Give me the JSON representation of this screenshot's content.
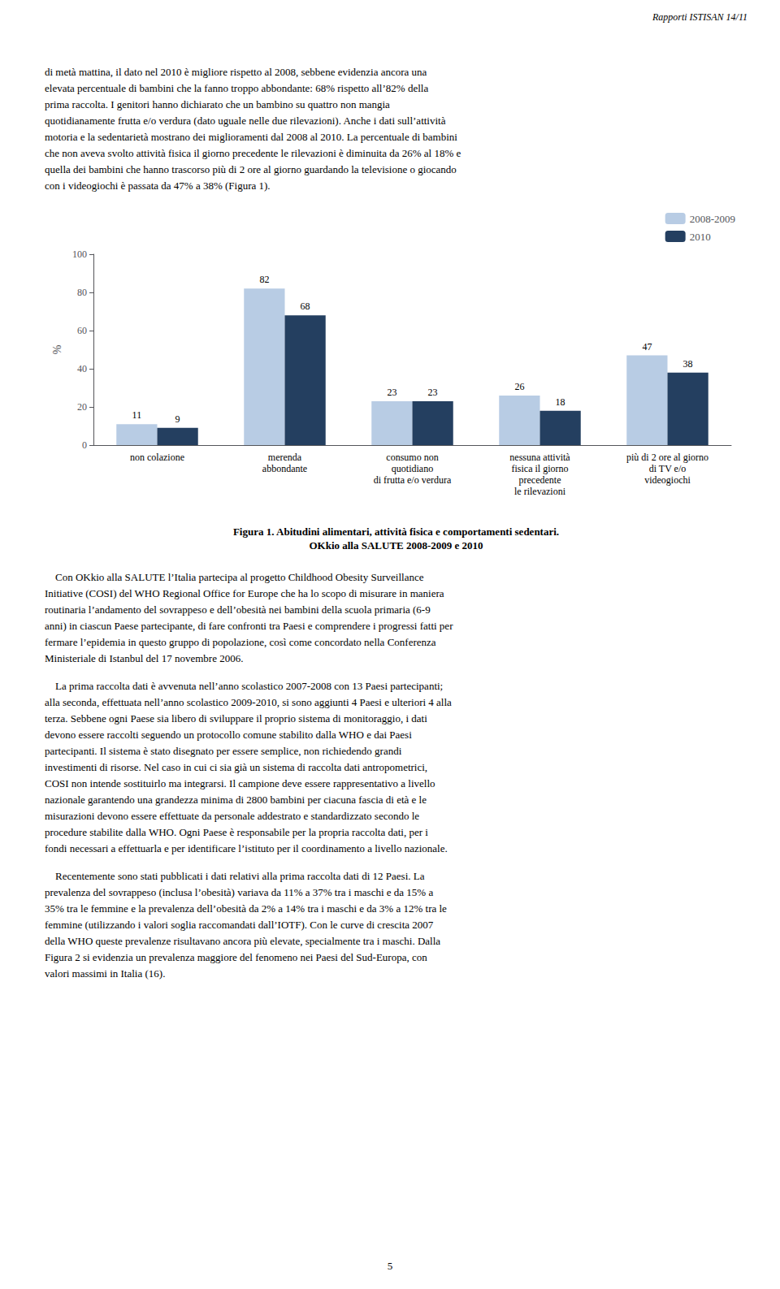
{
  "chart_data": {
    "type": "bar",
    "title": "Figura 1. Abitudini alimentari, attività fisica e comportamenti sedentari.",
    "subtitle": "OKkio alla SALUTE 2008-2009 e 2010",
    "categories": [
      "non colazione",
      "merenda\nabbondante",
      "consumo non\nquotidiano\ndi frutta e/o verdura",
      "nessuna attività\nfisica il giorno\nprecedente\nle rilevazioni",
      "più di 2 ore al giorno\ndi TV e/o\nvideogiochi"
    ],
    "series": [
      {
        "name": "2008-2009",
        "color": "#b8cce4",
        "values": [
          11,
          82,
          23,
          26,
          47
        ]
      },
      {
        "name": "2010",
        "color": "#243f60",
        "values": [
          9,
          68,
          23,
          18,
          38
        ]
      }
    ],
    "ylabel": "%",
    "ylim": [
      0,
      100
    ],
    "yticks": [
      0,
      20,
      40,
      60,
      80,
      100
    ],
    "grid": false,
    "legend": "upper right",
    "data_labels": true,
    "annotations": [
      "Rapporti ISTISAN 14/11",
      "di metà mattina, il dato nel 2010 è migliore rispetto al 2008, sebbene evidenzia ancora una\nelevata percentuale di bambini che la fanno troppo abbondante: 68% rispetto all’82% della\nprima raccolta. I genitori hanno dichiarato che un bambino su quattro non mangia\nquotidianamente frutta e/o verdura (dato uguale nelle due rilevazioni). Anche i dati sull’attività\nmotoria e la sedentarietà mostrano dei miglioramenti dal 2008 al 2010. La percentuale di bambini\nche non aveva svolto attività fisica il giorno precedente le rilevazioni è diminuita da 26% al 18% e\nquella dei bambini che hanno trascorso più di 2 ore al giorno guardando la televisione o giocando\ncon i videogiochi è passata da 47% a 38% (Figura 1).",
      "    Con OKkio alla SALUTE l’Italia partecipa al progetto Childhood Obesity Surveillance\nInitiative (COSI) del WHO Regional Office for Europe che ha lo scopo di misurare in maniera\nroutinaria l’andamento del sovrappeso e dell’obesità nei bambini della scuola primaria (6-9\nanni) in ciascun Paese partecipante, di fare confronti tra Paesi e comprendere i progressi fatti per\nfermare l’epidemia in questo gruppo di popolazione, così come concordato nella Conferenza\nMinisteriale di Istanbul del 17 novembre 2006.",
      "    La prima raccolta dati è avvenuta nell’anno scolastico 2007-2008 con 13 Paesi partecipanti;\nalla seconda, effettuata nell’anno scolastico 2009-2010, si sono aggiunti 4 Paesi e ulteriori 4 alla\nterza. Sebbene ogni Paese sia libero di sviluppare il proprio sistema di monitoraggio, i dati\ndevono essere raccolti seguendo un protocollo comune stabilito dalla WHO e dai Paesi\npartecipanti. Il sistema è stato disegnato per essere semplice, non richiedendo grandi\ninvestimenti di risorse. Nel caso in cui ci sia già un sistema di raccolta dati antropometrici,\nCOSI non intende sostituirlo ma integrarsi. Il campione deve essere rappresentativo a livello\nnazionale garantendo una grandezza minima di 2800 bambini per ciacuna fascia di età e le\nmisurazioni devono essere effettuate da personale addestrato e standardizzato secondo le\nprocedure stabilite dalla WHO. Ogni Paese è responsabile per la propria raccolta dati, per i\nfondi necessari a effettuarla e per identificare l’istituto per il coordinamento a livello nazionale.",
      "    Recentemente sono stati pubblicati i dati relativi alla prima raccolta dati di 12 Paesi. La\nprevalenza del sovrappeso (inclusa l’obesità) variava da 11% a 37% tra i maschi e da 15% a\n35% tra le femmine e la prevalenza dell’obesità da 2% a 14% tra i maschi e da 3% a 12% tra le\nfemmine (utilizzando i valori soglia raccomandati dall’IOTF). Con le curve di crescita 2007\ndella WHO queste prevalenze risultavano ancora più elevate, specialmente tra i maschi. Dalla\nFigura 2 si evidenzia un prevalenza maggiore del fenomeno nei Paesi del Sud-Europa, con\nvalori massimi in Italia (16).",
      "5"
    ]
  }
}
